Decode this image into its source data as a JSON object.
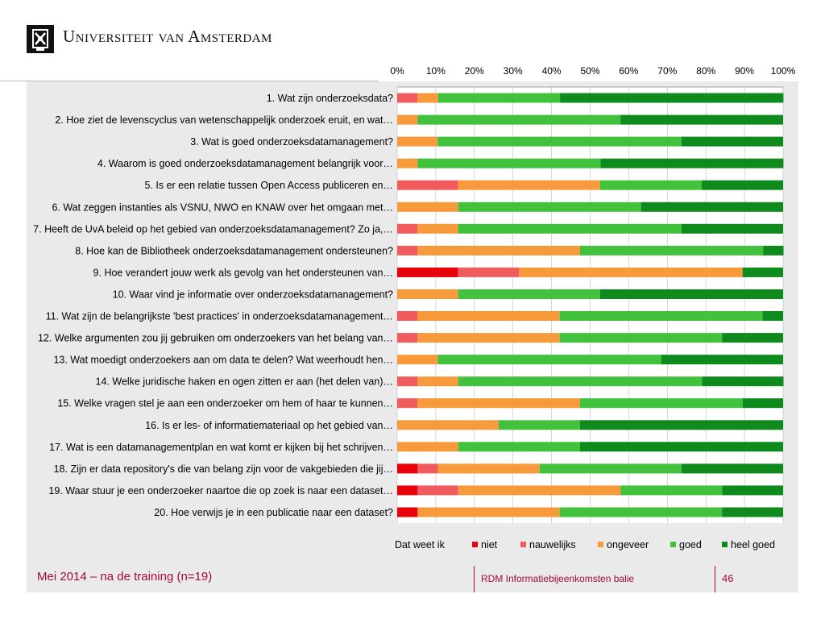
{
  "header": {
    "university": "Universiteit van Amsterdam"
  },
  "footer": {
    "left": "Mei 2014 – na de training (n=19)",
    "middle": "RDM Informatiebijeenkomsten balie",
    "page": "46"
  },
  "colors": {
    "niet": "#e8000b",
    "nauwelijks": "#f05b5d",
    "ongeveer": "#f79a3c",
    "goed": "#42c23c",
    "heel_goed": "#0f8a1c",
    "footer": "#a00c35"
  },
  "chart_data": {
    "type": "bar",
    "orientation": "horizontal",
    "stacked": "percent",
    "xlim": [
      0,
      100
    ],
    "x_ticks": [
      "0%",
      "10%",
      "20%",
      "30%",
      "40%",
      "50%",
      "60%",
      "70%",
      "80%",
      "90%",
      "100%"
    ],
    "legend_title": "Dat weet ik",
    "legend_position": "bottom",
    "categories": [
      "1. Wat zijn onderzoeksdata?",
      "2. Hoe ziet de levenscyclus van wetenschappelijk onderzoek eruit, en wat…",
      "3. Wat is goed onderzoeksdatamanagement?",
      "4. Waarom is goed onderzoeksdatamanagement belangrijk voor…",
      "5. Is er een relatie tussen Open Access publiceren en…",
      "6. Wat zeggen instanties als VSNU, NWO en KNAW over het omgaan met…",
      "7. Heeft de UvA beleid op het gebied van onderzoeksdatamanagement? Zo ja,…",
      "8. Hoe kan de Bibliotheek onderzoeksdatamanagement ondersteunen?",
      "9. Hoe verandert jouw werk als gevolg van het ondersteunen van…",
      "10. Waar vind je informatie over onderzoeksdatamanagement?",
      "11. Wat zijn de belangrijkste 'best practices' in onderzoeksdatamanagement…",
      "12. Welke argumenten zou jij gebruiken om onderzoekers van het belang van…",
      "13. Wat moedigt onderzoekers aan om data te delen? Wat weerhoudt hen…",
      "14. Welke juridische haken en ogen zitten er aan (het delen van)…",
      "15. Welke vragen stel je aan een onderzoeker om hem of haar te kunnen…",
      "16. Is er les- of informatiemateriaal op het gebied van…",
      "17. Wat is een datamanagementplan en wat komt er kijken bij het schrijven…",
      "18. Zijn er data repository's die van belang zijn voor de vakgebieden die jij…",
      "19. Waar stuur je een onderzoeker naartoe die op zoek is naar een dataset…",
      "20. Hoe verwijs je in een publicatie naar een dataset?"
    ],
    "series": [
      {
        "name": "niet",
        "values": [
          0,
          0,
          0,
          0,
          0,
          0,
          0,
          0,
          15.8,
          0,
          0,
          0,
          0,
          0,
          0,
          0,
          0,
          5.3,
          5.3,
          5.3
        ]
      },
      {
        "name": "nauwelijks",
        "values": [
          5.3,
          0,
          0,
          0,
          15.8,
          0,
          5.3,
          5.3,
          15.8,
          0,
          5.3,
          5.3,
          0,
          5.3,
          5.3,
          0,
          0,
          5.3,
          10.5,
          0
        ]
      },
      {
        "name": "ongeveer",
        "values": [
          5.3,
          5.3,
          10.5,
          5.3,
          36.8,
          15.8,
          10.5,
          42.1,
          57.9,
          15.8,
          36.8,
          36.8,
          10.5,
          10.5,
          42.1,
          26.3,
          15.8,
          26.3,
          42.1,
          36.8
        ]
      },
      {
        "name": "goed",
        "values": [
          31.6,
          52.6,
          63.2,
          47.4,
          26.3,
          47.4,
          57.9,
          47.4,
          0,
          36.8,
          52.6,
          42.1,
          57.9,
          63.2,
          42.1,
          21.1,
          31.6,
          36.8,
          26.3,
          42.1
        ]
      },
      {
        "name": "heel goed",
        "values": [
          57.9,
          42.1,
          26.3,
          47.4,
          21.1,
          36.8,
          26.3,
          5.3,
          10.5,
          47.4,
          5.3,
          15.8,
          31.6,
          21.1,
          10.5,
          52.6,
          52.6,
          26.3,
          15.8,
          15.8
        ]
      }
    ]
  }
}
